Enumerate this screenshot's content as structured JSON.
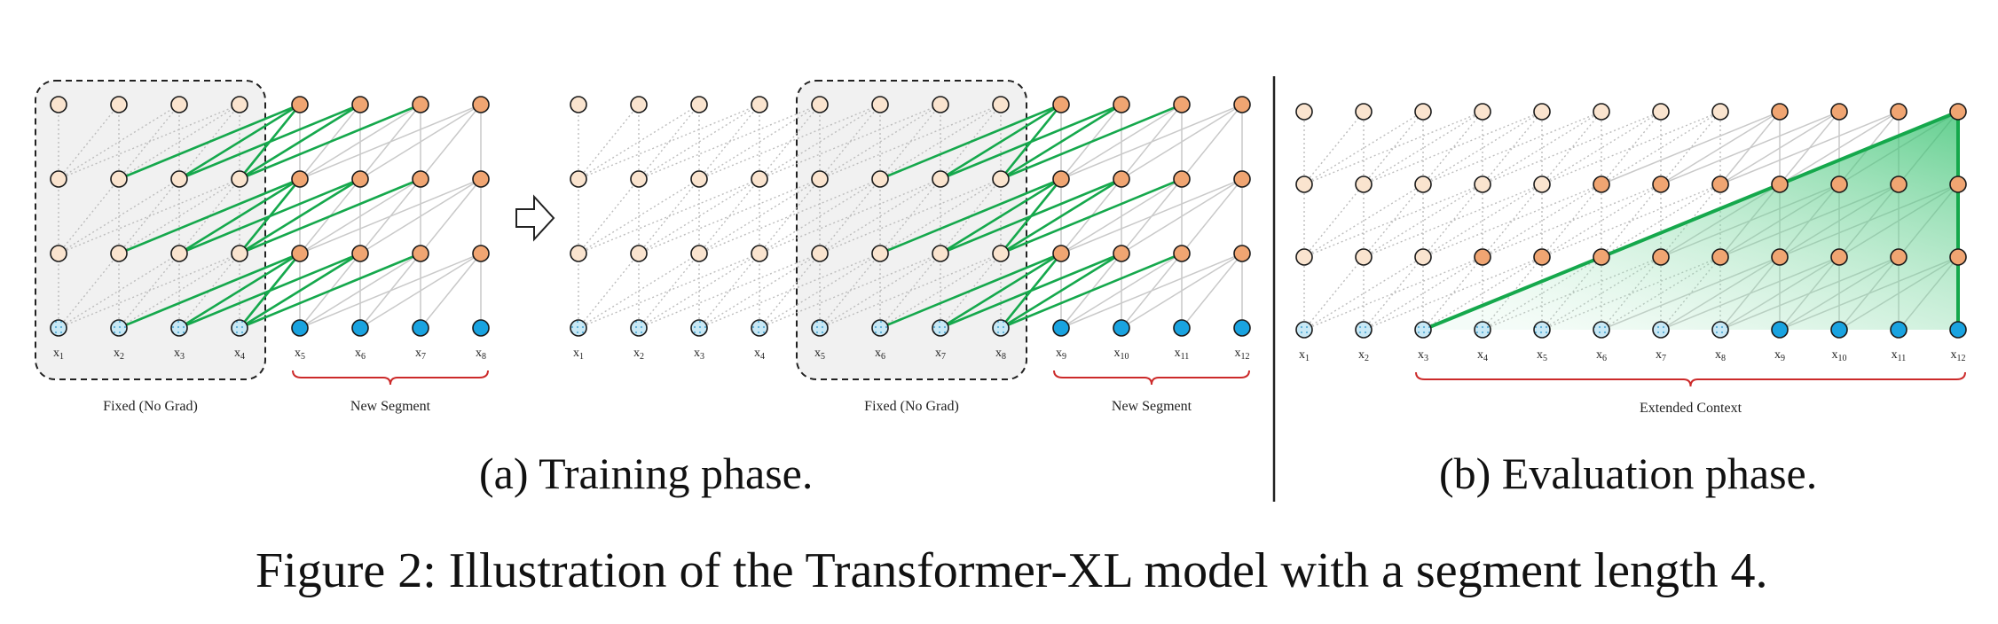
{
  "diagram": {
    "title": "Illustration of the Transformer-XL model with a segment length 4",
    "segment_length": 4,
    "layers": 4,
    "colors": {
      "node_stroke": "#1a1a1a",
      "memory_hidden_fill": "#fae4cf",
      "current_hidden_fill": "#f0a572",
      "memory_input_fill": "#c8e8f5",
      "current_input_fill": "#19a3e0",
      "gray_edge": "#c9c9c9",
      "dotted_edge": "#bdbdbd",
      "green_edge": "#15a84c",
      "green_fill": "#3cc473",
      "box_fill": "#f1f1f1",
      "box_stroke": "#222222",
      "brace": "#cc2a2a",
      "divider": "#222222"
    },
    "panel_a": {
      "caption": "(a) Training phase.",
      "steps": [
        {
          "tokens": [
            "x1",
            "x2",
            "x3",
            "x4",
            "x5",
            "x6",
            "x7",
            "x8"
          ],
          "token_subscripts": [
            "1",
            "2",
            "3",
            "4",
            "5",
            "6",
            "7",
            "8"
          ],
          "memory_tokens": 4,
          "fixed_label": "Fixed (No Grad)",
          "segment_label": "New Segment"
        },
        {
          "tokens": [
            "x1",
            "x2",
            "x3",
            "x4",
            "x5",
            "x6",
            "x7",
            "x8",
            "x9",
            "x10",
            "x11",
            "x12"
          ],
          "token_subscripts": [
            "1",
            "2",
            "3",
            "4",
            "5",
            "6",
            "7",
            "8",
            "9",
            "10",
            "11",
            "12"
          ],
          "memory_tokens": 8,
          "fixed_label": "Fixed (No Grad)",
          "segment_label": "New Segment"
        }
      ]
    },
    "panel_b": {
      "caption": "(b) Evaluation phase.",
      "tokens": [
        "x1",
        "x2",
        "x3",
        "x4",
        "x5",
        "x6",
        "x7",
        "x8",
        "x9",
        "x10",
        "x11",
        "x12"
      ],
      "token_subscripts": [
        "1",
        "2",
        "3",
        "4",
        "5",
        "6",
        "7",
        "8",
        "9",
        "10",
        "11",
        "12"
      ],
      "context_label": "Extended Context",
      "context_start_token": 3,
      "predicted_token": 12
    },
    "figure_caption": "Figure 2: Illustration of the Transformer-XL model with a segment length 4."
  }
}
